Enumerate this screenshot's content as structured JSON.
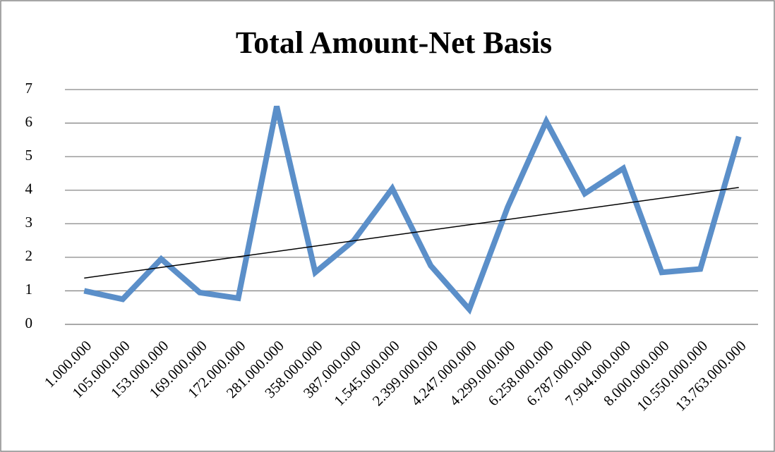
{
  "chart_data": {
    "type": "line",
    "title": "Total Amount-Net Basis",
    "categories": [
      "1.000.000",
      "105.000.000",
      "153.000.000",
      "169.000.000",
      "172.000.000",
      "281.000.000",
      "358.000.000",
      "387.000.000",
      "1.545.000.000",
      "2.399.000.000",
      "4.247.000.000",
      "4.299.000.000",
      "6.258.000.000",
      "6.787.000.000",
      "7.904.000.000",
      "8.000.000.000",
      "10.550.000.000",
      "13.763.000.000"
    ],
    "series": [
      {
        "color": "#5b8fc9",
        "values": [
          1.0,
          0.75,
          1.95,
          0.95,
          0.78,
          6.5,
          1.55,
          2.5,
          4.05,
          1.75,
          0.45,
          3.5,
          6.05,
          3.9,
          4.65,
          1.55,
          1.65,
          5.6
        ]
      }
    ],
    "trendline": {
      "values": [
        1.38,
        4.08
      ],
      "color": "#000000"
    },
    "ylim": [
      0,
      7
    ],
    "yticks": [
      0,
      1,
      2,
      3,
      4,
      5,
      6,
      7
    ],
    "grid": true
  }
}
